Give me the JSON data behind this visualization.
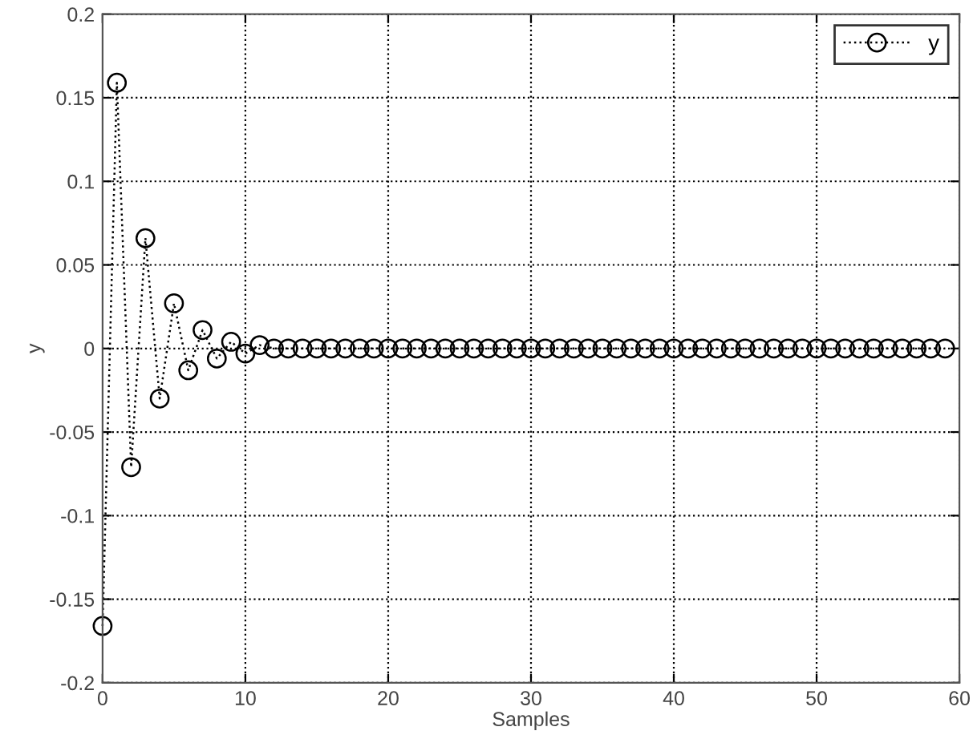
{
  "chart_data": {
    "type": "line",
    "xlabel": "Samples",
    "ylabel": "y",
    "x": [
      0,
      1,
      2,
      3,
      4,
      5,
      6,
      7,
      8,
      9,
      10,
      11,
      12,
      13,
      14,
      15,
      16,
      17,
      18,
      19,
      20,
      21,
      22,
      23,
      24,
      25,
      26,
      27,
      28,
      29,
      30,
      31,
      32,
      33,
      34,
      35,
      36,
      37,
      38,
      39,
      40,
      41,
      42,
      43,
      44,
      45,
      46,
      47,
      48,
      49,
      50,
      51,
      52,
      53,
      54,
      55,
      56,
      57,
      58,
      59
    ],
    "series": [
      {
        "name": "y",
        "color": "#000000",
        "values": [
          -0.166,
          0.159,
          -0.071,
          0.066,
          -0.03,
          0.027,
          -0.013,
          0.011,
          -0.006,
          0.004,
          -0.003,
          0.002,
          0,
          0,
          0,
          0,
          0,
          0,
          0,
          0,
          0,
          0,
          0,
          0,
          0,
          0,
          0,
          0,
          0,
          0,
          0,
          0,
          0,
          0,
          0,
          0,
          0,
          0,
          0,
          0,
          0,
          0,
          0,
          0,
          0,
          0,
          0,
          0,
          0,
          0,
          0,
          0,
          0,
          0,
          0,
          0,
          0,
          0,
          0,
          0
        ]
      }
    ],
    "xlim": [
      0,
      60
    ],
    "xticks": [
      0,
      10,
      20,
      30,
      40,
      50,
      60
    ],
    "ylim": [
      -0.2,
      0.2
    ],
    "yticks": [
      -0.2,
      -0.15,
      -0.1,
      -0.05,
      0,
      0.05,
      0.1,
      0.15,
      0.2
    ],
    "grid": true,
    "legend": "top right",
    "marker": "circle",
    "line_style": "dotted"
  }
}
